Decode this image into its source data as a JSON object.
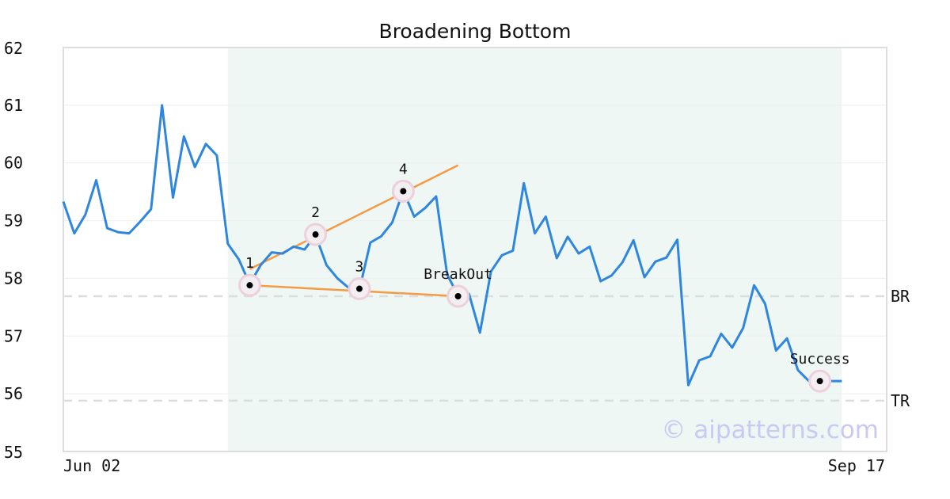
{
  "chart_data": {
    "type": "line",
    "title": "Broadening Bottom",
    "ylim": [
      55,
      62
    ],
    "yticks": [
      55,
      56,
      57,
      58,
      59,
      60,
      61,
      62
    ],
    "x_tick_labels": [
      "Jun 02",
      "Sep 17"
    ],
    "grid": true,
    "series": [
      {
        "color": "#2e86de",
        "values": [
          59.33,
          58.78,
          59.1,
          59.7,
          58.87,
          58.8,
          58.78,
          58.98,
          59.2,
          61.0,
          59.4,
          60.46,
          59.93,
          60.33,
          60.13,
          58.6,
          58.33,
          57.9,
          58.23,
          58.45,
          58.43,
          58.55,
          58.5,
          58.75,
          58.23,
          58.0,
          57.84,
          57.8,
          58.62,
          58.73,
          58.97,
          59.52,
          59.07,
          59.22,
          59.42,
          58.07,
          57.7,
          57.73,
          57.06,
          58.12,
          58.4,
          58.48,
          59.65,
          58.78,
          59.07,
          58.35,
          58.72,
          58.43,
          58.55,
          57.95,
          58.05,
          58.28,
          58.66,
          58.02,
          58.29,
          58.36,
          58.67,
          56.15,
          56.58,
          56.65,
          57.04,
          56.8,
          57.14,
          57.88,
          57.56,
          56.75,
          56.96,
          56.41,
          56.22,
          56.22,
          56.22,
          56.22
        ]
      }
    ],
    "pattern_range": [
      15,
      71
    ],
    "reference_lines": [
      {
        "label": "BR",
        "value": 57.69
      },
      {
        "label": "TR",
        "value": 55.88
      }
    ],
    "trendlines": [
      {
        "color": "#f59a45",
        "from": [
          17,
          58.16
        ],
        "to": [
          36,
          59.96
        ]
      },
      {
        "color": "#f59a45",
        "from": [
          17,
          57.88
        ],
        "to": [
          36,
          57.69
        ]
      }
    ],
    "points": [
      {
        "label": "1",
        "index": 17,
        "value": 57.88
      },
      {
        "label": "2",
        "index": 23,
        "value": 58.76
      },
      {
        "label": "3",
        "index": 27,
        "value": 57.82
      },
      {
        "label": "4",
        "index": 31,
        "value": 59.51
      },
      {
        "label": "BreakOut",
        "index": 36,
        "value": 57.69
      },
      {
        "label": "Success",
        "index": 69,
        "value": 56.22
      }
    ],
    "watermark": "© aipatterns.com"
  }
}
